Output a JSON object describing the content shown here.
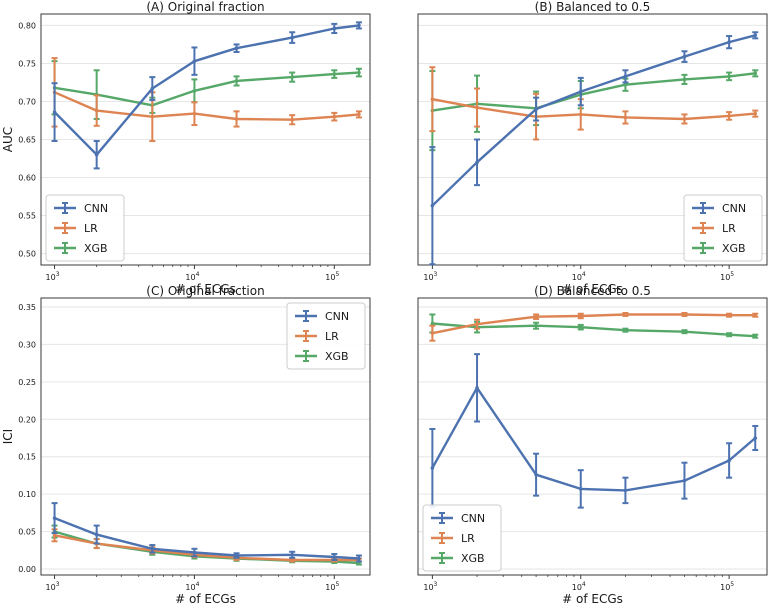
{
  "colors": {
    "CNN": "#4c72b0",
    "LR": "#dd8452",
    "XGB": "#55a868"
  },
  "chart_data": [
    {
      "panel": "A",
      "type": "line",
      "title": "(A) Original fraction",
      "xlabel": "# of ECGs",
      "ylabel": "AUC",
      "xscale": "log",
      "xlim": [
        800,
        180000
      ],
      "ylim": [
        0.485,
        0.815
      ],
      "yticks": [
        "0.50",
        "0.55",
        "0.60",
        "0.65",
        "0.70",
        "0.75",
        "0.80"
      ],
      "x": [
        1000,
        2000,
        5000,
        10000,
        20000,
        50000,
        100000,
        150000
      ],
      "legend": "lower-left",
      "series": [
        {
          "name": "CNN",
          "values": [
            0.686,
            0.63,
            0.717,
            0.753,
            0.77,
            0.784,
            0.796,
            0.8
          ],
          "errors": [
            0.038,
            0.018,
            0.015,
            0.018,
            0.005,
            0.007,
            0.006,
            0.004
          ]
        },
        {
          "name": "LR",
          "values": [
            0.712,
            0.688,
            0.68,
            0.684,
            0.677,
            0.676,
            0.68,
            0.683
          ],
          "errors": [
            0.045,
            0.02,
            0.032,
            0.015,
            0.01,
            0.006,
            0.005,
            0.004
          ]
        },
        {
          "name": "XGB",
          "values": [
            0.718,
            0.709,
            0.695,
            0.714,
            0.727,
            0.732,
            0.736,
            0.738
          ],
          "errors": [
            0.035,
            0.032,
            0.01,
            0.015,
            0.006,
            0.006,
            0.005,
            0.005
          ]
        }
      ]
    },
    {
      "panel": "B",
      "type": "line",
      "title": "(B) Balanced to 0.5",
      "xlabel": "# of ECGs",
      "ylabel": "",
      "xscale": "log",
      "xlim": [
        800,
        180000
      ],
      "ylim": [
        0.485,
        0.815
      ],
      "yticks": [],
      "x": [
        1000,
        2000,
        5000,
        10000,
        20000,
        50000,
        100000,
        150000
      ],
      "legend": "lower-right",
      "series": [
        {
          "name": "CNN",
          "values": [
            0.563,
            0.62,
            0.69,
            0.713,
            0.733,
            0.759,
            0.778,
            0.787
          ],
          "errors": [
            0.077,
            0.03,
            0.015,
            0.018,
            0.008,
            0.007,
            0.008,
            0.004
          ]
        },
        {
          "name": "LR",
          "values": [
            0.703,
            0.692,
            0.68,
            0.683,
            0.679,
            0.677,
            0.681,
            0.684
          ],
          "errors": [
            0.042,
            0.025,
            0.03,
            0.02,
            0.008,
            0.006,
            0.005,
            0.004
          ]
        },
        {
          "name": "XGB",
          "values": [
            0.688,
            0.697,
            0.691,
            0.709,
            0.722,
            0.729,
            0.733,
            0.737
          ],
          "errors": [
            0.052,
            0.037,
            0.022,
            0.018,
            0.008,
            0.006,
            0.005,
            0.004
          ]
        }
      ]
    },
    {
      "panel": "C",
      "type": "line",
      "title": "(C) Original fraction",
      "xlabel": "# of ECGs",
      "ylabel": "ICI",
      "xscale": "log",
      "xlim": [
        800,
        180000
      ],
      "ylim": [
        -0.008,
        0.362
      ],
      "yticks": [
        "0.00",
        "0.05",
        "0.10",
        "0.15",
        "0.20",
        "0.25",
        "0.30",
        "0.35"
      ],
      "x": [
        1000,
        2000,
        5000,
        10000,
        20000,
        50000,
        100000,
        150000
      ],
      "legend": "upper-right",
      "series": [
        {
          "name": "CNN",
          "values": [
            0.068,
            0.046,
            0.027,
            0.022,
            0.018,
            0.019,
            0.016,
            0.014
          ],
          "errors": [
            0.02,
            0.012,
            0.005,
            0.005,
            0.003,
            0.004,
            0.004,
            0.004
          ]
        },
        {
          "name": "LR",
          "values": [
            0.045,
            0.034,
            0.025,
            0.019,
            0.015,
            0.012,
            0.012,
            0.012
          ],
          "errors": [
            0.008,
            0.006,
            0.004,
            0.003,
            0.003,
            0.002,
            0.002,
            0.002
          ]
        },
        {
          "name": "XGB",
          "values": [
            0.05,
            0.034,
            0.023,
            0.017,
            0.014,
            0.011,
            0.01,
            0.008
          ],
          "errors": [
            0.008,
            0.006,
            0.004,
            0.003,
            0.003,
            0.002,
            0.002,
            0.002
          ]
        }
      ]
    },
    {
      "panel": "D",
      "type": "line",
      "title": "(D) Balanced to 0.5",
      "xlabel": "# of ECGs",
      "ylabel": "",
      "xscale": "log",
      "xlim": [
        800,
        180000
      ],
      "ylim": [
        -0.008,
        0.362
      ],
      "yticks": [],
      "x": [
        1000,
        2000,
        5000,
        10000,
        20000,
        50000,
        100000,
        150000
      ],
      "legend": "lower-left",
      "series": [
        {
          "name": "CNN",
          "values": [
            0.135,
            0.242,
            0.126,
            0.107,
            0.105,
            0.118,
            0.145,
            0.175
          ],
          "errors": [
            0.052,
            0.045,
            0.028,
            0.025,
            0.017,
            0.024,
            0.023,
            0.016
          ]
        },
        {
          "name": "LR",
          "values": [
            0.315,
            0.327,
            0.337,
            0.338,
            0.34,
            0.34,
            0.339,
            0.339
          ],
          "errors": [
            0.01,
            0.006,
            0.003,
            0.003,
            0.002,
            0.002,
            0.002,
            0.002
          ]
        },
        {
          "name": "XGB",
          "values": [
            0.328,
            0.323,
            0.325,
            0.323,
            0.319,
            0.317,
            0.313,
            0.311
          ],
          "errors": [
            0.012,
            0.007,
            0.004,
            0.003,
            0.002,
            0.002,
            0.002,
            0.002
          ]
        }
      ]
    }
  ],
  "xtick_labels": [
    "10",
    "3",
    "10",
    "4",
    "10",
    "5"
  ]
}
